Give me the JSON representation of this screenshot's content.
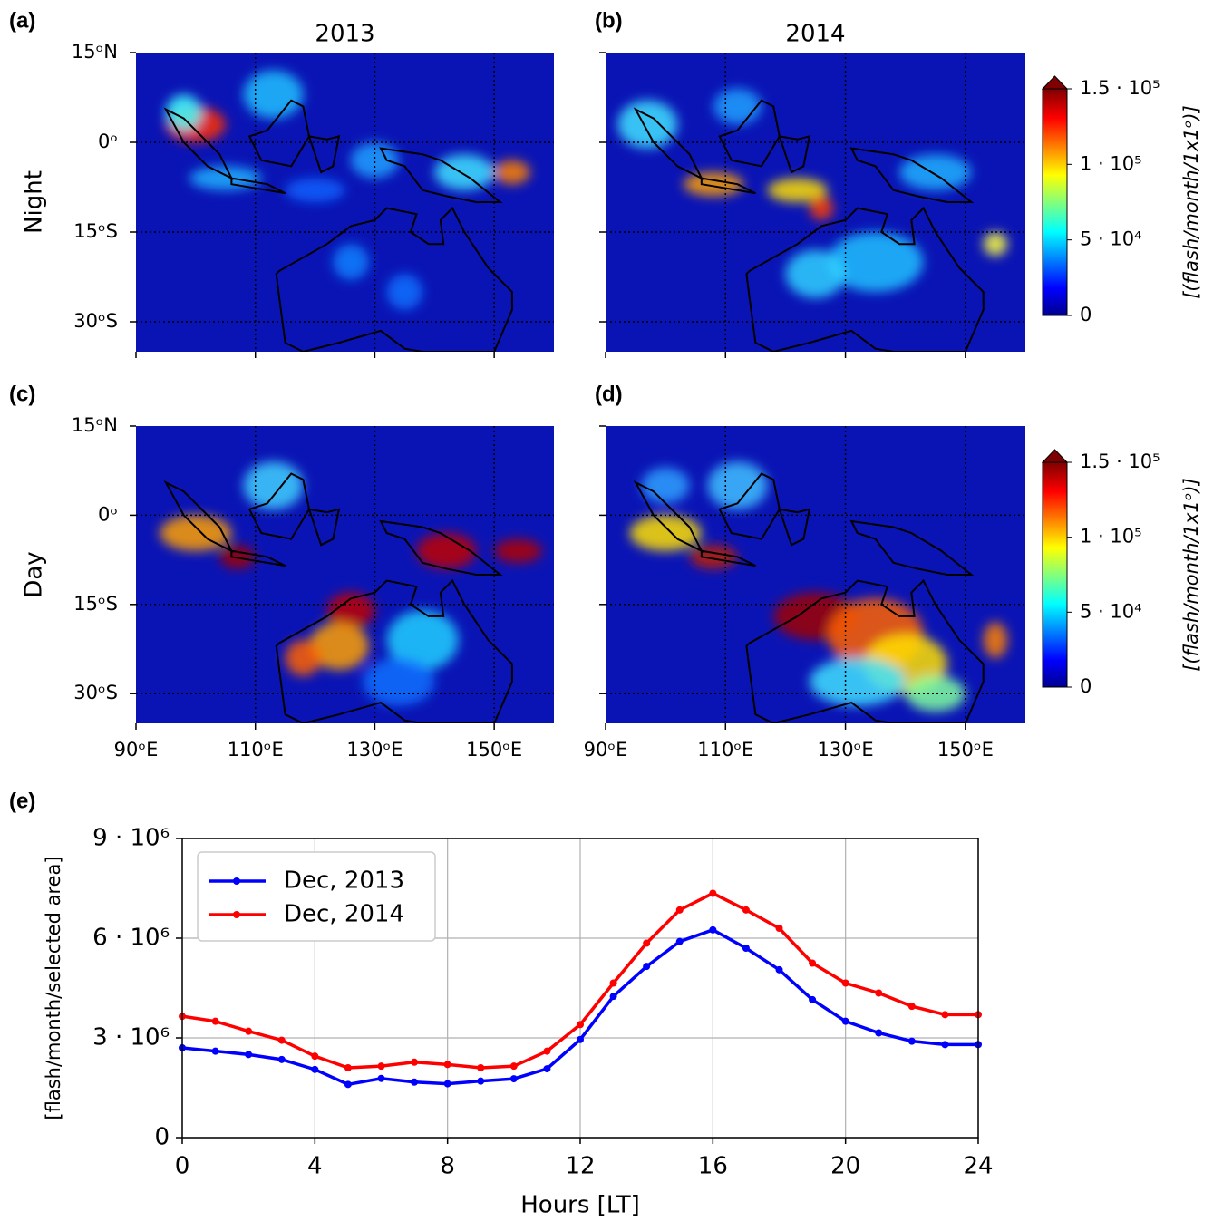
{
  "maps": {
    "panels": [
      {
        "label": "(a)",
        "title": "2013"
      },
      {
        "label": "(b)",
        "title": "2014"
      },
      {
        "label": "(c)"
      },
      {
        "label": "(d)"
      }
    ],
    "row_labels": [
      "Night",
      "Day"
    ],
    "lon_lim": [
      90,
      160
    ],
    "lat_lim": [
      -35,
      15
    ],
    "lon_ticks": [
      {
        "value": 90,
        "label": "90ᵒE"
      },
      {
        "value": 110,
        "label": "110ᵒE"
      },
      {
        "value": 130,
        "label": "130ᵒE"
      },
      {
        "value": 150,
        "label": "150ᵒE"
      }
    ],
    "lat_ticks": [
      {
        "value": 15,
        "label": "15ᵒN"
      },
      {
        "value": 0,
        "label": "0ᵒ"
      },
      {
        "value": -15,
        "label": "15ᵒS"
      },
      {
        "value": -30,
        "label": "30ᵒS"
      }
    ],
    "colorbar": {
      "label": "[(flash/month/1x1ᵒ)]",
      "lim": [
        0,
        150000
      ],
      "ticks": [
        {
          "value": 150000,
          "label": "1.5 · 10⁵"
        },
        {
          "value": 100000,
          "label": "1 · 10⁵"
        },
        {
          "value": 50000,
          "label": "5 · 10⁴"
        },
        0
      ]
    }
  },
  "chart_data": {
    "type": "line",
    "panel_label": "(e)",
    "x_label": "Hours [LT]",
    "y_label": "[flash/month/selected area]",
    "x": [
      0,
      1,
      2,
      3,
      4,
      5,
      6,
      7,
      8,
      9,
      10,
      11,
      12,
      13,
      14,
      15,
      16,
      17,
      18,
      19,
      20,
      21,
      22,
      23,
      24
    ],
    "series": [
      {
        "name": "Dec, 2013",
        "color": "#0000ff",
        "values": [
          2700000,
          2600000,
          2500000,
          2350000,
          2050000,
          1600000,
          1780000,
          1670000,
          1620000,
          1700000,
          1770000,
          2070000,
          2950000,
          4250000,
          5150000,
          5900000,
          6250000,
          5700000,
          5050000,
          4150000,
          3500000,
          3150000,
          2900000,
          2800000,
          2800000
        ]
      },
      {
        "name": "Dec, 2014",
        "color": "#ff0000",
        "values": [
          3650000,
          3500000,
          3200000,
          2930000,
          2450000,
          2100000,
          2150000,
          2270000,
          2200000,
          2100000,
          2150000,
          2600000,
          3400000,
          4650000,
          5850000,
          6850000,
          7350000,
          6850000,
          6300000,
          5250000,
          4650000,
          4350000,
          3950000,
          3700000,
          3700000
        ]
      }
    ],
    "xlim": [
      0,
      24
    ],
    "xticks": [
      0,
      4,
      8,
      12,
      16,
      20,
      24
    ],
    "ylim": [
      0,
      9000000
    ],
    "yticks": [
      0,
      {
        "value": 3000000,
        "label": "3 · 10⁶"
      },
      {
        "value": 6000000,
        "label": "6 · 10⁶"
      },
      {
        "value": 9000000,
        "label": "9 · 10⁶"
      }
    ],
    "grid": true,
    "legend": "upper left"
  }
}
